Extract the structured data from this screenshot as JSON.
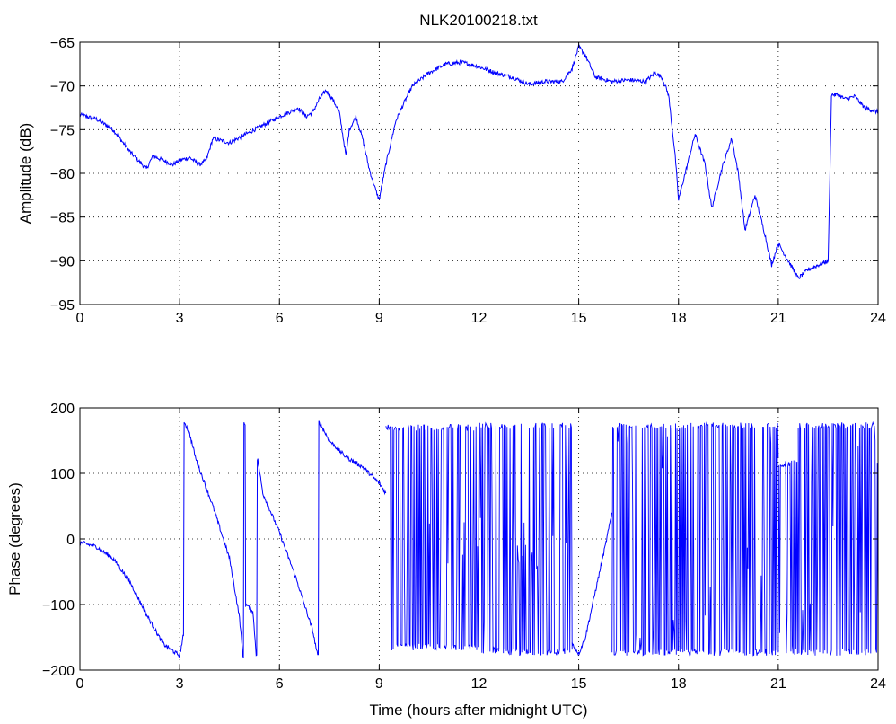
{
  "chart_data": [
    {
      "type": "line",
      "title": "NLK20100218.txt",
      "xlabel": "",
      "ylabel": "Amplitude (dB)",
      "xlim": [
        0,
        24
      ],
      "ylim": [
        -95,
        -65
      ],
      "xticks": [
        0,
        3,
        6,
        9,
        12,
        15,
        18,
        21,
        24
      ],
      "yticks": [
        -95,
        -90,
        -85,
        -80,
        -75,
        -70,
        -65
      ],
      "grid": true,
      "color": "#0000ff",
      "series": [
        {
          "x": [
            0,
            0.5,
            1.0,
            1.5,
            2.0,
            2.2,
            2.5,
            2.8,
            3.0,
            3.3,
            3.6,
            3.8,
            4.0,
            4.5,
            5.0,
            5.5,
            6.0,
            6.3,
            6.55,
            6.8,
            7.0,
            7.2,
            7.4,
            7.6,
            7.8,
            8.0,
            8.1,
            8.3,
            8.5,
            8.7,
            8.9,
            9.0,
            9.2,
            9.5,
            9.8,
            10.0,
            10.5,
            11.0,
            11.5,
            12.0,
            12.5,
            13.0,
            13.5,
            14.0,
            14.5,
            14.8,
            15.0,
            15.2,
            15.5,
            16.0,
            16.5,
            17.0,
            17.3,
            17.5,
            17.7,
            17.9,
            18.0,
            18.2,
            18.5,
            18.8,
            19.0,
            19.3,
            19.6,
            19.8,
            20.0,
            20.3,
            20.6,
            20.8,
            21.0,
            21.3,
            21.6,
            21.9,
            22.2,
            22.5,
            22.6,
            22.8,
            23.0,
            23.3,
            23.6,
            24.0
          ],
          "y": [
            -73.3,
            -73.8,
            -75.0,
            -77.5,
            -79.5,
            -78.0,
            -78.5,
            -79.0,
            -78.5,
            -78.2,
            -79.0,
            -78.5,
            -76.0,
            -76.5,
            -75.5,
            -74.5,
            -73.5,
            -73.0,
            -72.5,
            -73.5,
            -73.0,
            -71.5,
            -70.5,
            -71.5,
            -73.0,
            -78.0,
            -75.0,
            -73.5,
            -76.0,
            -79.5,
            -82.0,
            -83.0,
            -79.0,
            -74.0,
            -71.5,
            -70.0,
            -68.5,
            -67.5,
            -67.3,
            -67.8,
            -68.5,
            -69.0,
            -69.8,
            -69.5,
            -69.5,
            -68.0,
            -65.5,
            -66.5,
            -69.0,
            -69.5,
            -69.3,
            -69.5,
            -68.5,
            -69.0,
            -71.0,
            -78.0,
            -83.0,
            -80.0,
            -75.5,
            -79.0,
            -84.0,
            -79.5,
            -76.0,
            -80.0,
            -86.5,
            -82.5,
            -87.0,
            -90.5,
            -88.0,
            -90.0,
            -92.0,
            -91.0,
            -90.5,
            -90.0,
            -71.0,
            -71.0,
            -71.5,
            -71.2,
            -72.5,
            -73.0
          ]
        }
      ]
    },
    {
      "type": "line",
      "title": "",
      "xlabel": "Time (hours after midnight UTC)",
      "ylabel": "Phase (degrees)",
      "xlim": [
        0,
        24
      ],
      "ylim": [
        -200,
        200
      ],
      "xticks": [
        0,
        3,
        6,
        9,
        12,
        15,
        18,
        21,
        24
      ],
      "yticks": [
        -200,
        -100,
        0,
        100,
        200
      ],
      "grid": true,
      "color": "#0000ff",
      "series": [
        {
          "x": [
            0,
            0.5,
            1.0,
            1.5,
            2.0,
            2.5,
            3.0,
            3.1,
            3.15,
            3.3,
            3.5,
            4.0,
            4.5,
            4.8,
            4.9,
            4.95,
            5.0,
            5.2,
            5.3,
            5.35,
            5.5,
            6.0,
            6.5,
            7.0,
            7.15,
            7.2,
            7.5,
            8.0,
            8.5,
            9.0,
            9.2
          ],
          "y": [
            -5,
            -12,
            -30,
            -65,
            -115,
            -160,
            -178,
            -150,
            178,
            160,
            120,
            50,
            -30,
            -120,
            -178,
            175,
            -100,
            -110,
            -175,
            120,
            70,
            10,
            -60,
            -140,
            -178,
            178,
            150,
            125,
            110,
            85,
            70
          ]
        },
        {
          "x": [
            14.8,
            15.0,
            15.2,
            15.5,
            15.8,
            16.0
          ],
          "y": [
            -160,
            -175,
            -150,
            -80,
            -10,
            40
          ]
        }
      ],
      "oscillations": [
        {
          "x_start": 9.2,
          "x_end": 12.0,
          "min": -170,
          "max": 175,
          "base_min": -70,
          "base_max": 30
        },
        {
          "x_start": 12.0,
          "x_end": 12.6,
          "min": -175,
          "max": 178,
          "base_min": -175,
          "base_max": 178
        },
        {
          "x_start": 12.6,
          "x_end": 14.8,
          "min": -178,
          "max": 178,
          "base_min": -60,
          "base_max": 40
        },
        {
          "x_start": 16.0,
          "x_end": 21.0,
          "min": -178,
          "max": 178,
          "base_min": -178,
          "base_max": 178
        },
        {
          "x_start": 21.0,
          "x_end": 21.6,
          "min": -178,
          "max": 120,
          "base_min": -170,
          "base_max": -50
        },
        {
          "x_start": 21.6,
          "x_end": 24.0,
          "min": -178,
          "max": 178,
          "base_min": -178,
          "base_max": 178
        }
      ]
    }
  ]
}
